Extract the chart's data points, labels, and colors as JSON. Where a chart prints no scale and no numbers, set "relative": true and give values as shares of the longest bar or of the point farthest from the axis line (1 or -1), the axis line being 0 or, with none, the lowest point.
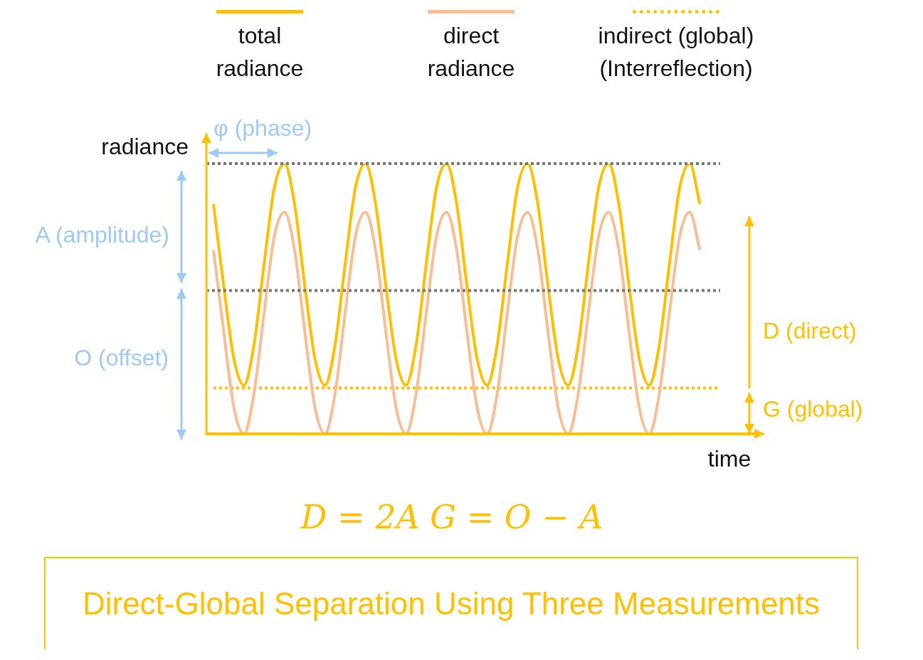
{
  "chart_data": {
    "type": "line",
    "relative": true,
    "xlabel": "time",
    "ylabel": "radiance",
    "title": "Direct-Global Separation Using Three Measurements",
    "legend": "top",
    "marker": "none",
    "categories": [
      null,
      null,
      null,
      null,
      null,
      null,
      null,
      null,
      null,
      null,
      null,
      null,
      null,
      null,
      null,
      null,
      null,
      null,
      null,
      null,
      null,
      null,
      null,
      null,
      null,
      null,
      null,
      null,
      null,
      null,
      null,
      null,
      null,
      null,
      null,
      null,
      null,
      null,
      null,
      null,
      null,
      null,
      null,
      null,
      null,
      null,
      null,
      null,
      null,
      null,
      null
    ],
    "series": [
      {
        "name": "total radiance",
        "color": "#ffbf00",
        "values": [
          0.85,
          0.55,
          0.28,
          0.18,
          0.33,
          0.63,
          0.91,
          1,
          0.85,
          0.55,
          0.28,
          0.18,
          0.33,
          0.63,
          0.91,
          1,
          0.85,
          0.55,
          0.28,
          0.18,
          0.33,
          0.63,
          0.91,
          1,
          0.85,
          0.55,
          0.28,
          0.18,
          0.33,
          0.63,
          0.91,
          1,
          0.85,
          0.55,
          0.28,
          0.18,
          0.33,
          0.63,
          0.91,
          1,
          0.85,
          0.55,
          0.28,
          0.18,
          0.33,
          0.63,
          0.91,
          1,
          0.85,
          null,
          null
        ]
      },
      {
        "name": "direct radiance",
        "color": "#f8bd94",
        "values": [
          0.68,
          0.38,
          0.1,
          0,
          0.15,
          0.45,
          0.73,
          0.82,
          0.68,
          0.38,
          0.1,
          0,
          0.15,
          0.45,
          0.73,
          0.82,
          0.68,
          0.38,
          0.1,
          0,
          0.15,
          0.45,
          0.73,
          0.82,
          0.68,
          0.38,
          0.1,
          0,
          0.15,
          0.45,
          0.73,
          0.82,
          0.68,
          0.38,
          0.1,
          0,
          0.15,
          0.45,
          0.73,
          0.82,
          0.68,
          0.38,
          0.1,
          0,
          0.15,
          0.45,
          0.73,
          0.82,
          0.68,
          null,
          null
        ]
      },
      {
        "name": "indirect (global) (Interreflection)",
        "color": "#ffc000",
        "line_style": "dotted",
        "values": [
          0.17,
          0.17,
          0.17,
          0.17,
          0.17,
          0.17,
          0.17,
          0.17,
          0.17,
          0.17,
          0.17,
          0.17,
          0.17,
          0.17,
          0.17,
          0.17,
          0.17,
          0.17,
          0.17,
          0.17,
          0.17,
          0.17,
          0.17,
          0.17,
          0.17,
          0.17,
          0.17,
          0.17,
          0.17,
          0.17,
          0.17,
          0.17,
          0.17,
          0.17,
          0.17,
          0.17,
          0.17,
          0.17,
          0.17,
          0.17,
          0.17,
          0.17,
          0.17,
          0.17,
          0.17,
          0.17,
          0.17,
          0.17,
          0.17,
          0.17,
          0.17
        ]
      }
    ],
    "ref_lines": [
      {
        "axis": "y",
        "value": 0,
        "color": "#ffc000",
        "line_style": "solid"
      },
      {
        "axis": "y",
        "value": 1,
        "color": "#777777",
        "line_style": "dotted"
      },
      {
        "axis": "y",
        "value": 0.53,
        "color": "#777777",
        "line_style": "dotted"
      }
    ],
    "annotations": [
      "φ (phase)",
      "A (amplitude)",
      "O (offset)",
      "D (direct)",
      "G (global)",
      "D = 2A   G = O − A"
    ]
  }
}
